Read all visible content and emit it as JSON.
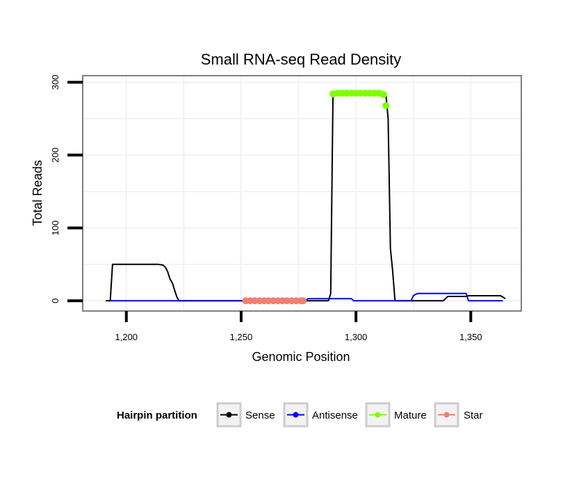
{
  "chart_data": {
    "type": "line",
    "title": "Small RNA-seq Read Density",
    "xlabel": "Genomic Position",
    "ylabel": "Total Reads",
    "xlim": [
      1181,
      1372
    ],
    "ylim": [
      -14,
      309
    ],
    "x_ticks": [
      1200,
      1250,
      1300,
      1350
    ],
    "x_tick_labels": [
      "1,200",
      "1,250",
      "1,300",
      "1,350"
    ],
    "y_ticks": [
      0,
      100,
      200,
      300
    ],
    "y_tick_labels": [
      "0",
      "100",
      "200",
      "300"
    ],
    "grid": true,
    "legend": {
      "title": "Hairpin partition",
      "position": "bottom"
    },
    "series": [
      {
        "name": "Sense",
        "color": "#000000",
        "style": "line",
        "points": [
          [
            1191,
            0
          ],
          [
            1193,
            0
          ],
          [
            1194,
            50
          ],
          [
            1214,
            50
          ],
          [
            1216,
            49
          ],
          [
            1217,
            46
          ],
          [
            1218,
            40
          ],
          [
            1219,
            30
          ],
          [
            1220,
            25
          ],
          [
            1221,
            15
          ],
          [
            1222,
            5
          ],
          [
            1223,
            0
          ],
          [
            1288,
            0
          ],
          [
            1289,
            10
          ],
          [
            1290,
            285
          ],
          [
            1313,
            285
          ],
          [
            1314,
            250
          ],
          [
            1315,
            72
          ],
          [
            1316,
            40
          ],
          [
            1317,
            0
          ],
          [
            1338,
            0
          ],
          [
            1340,
            6
          ],
          [
            1348,
            6
          ],
          [
            1349,
            7
          ],
          [
            1363,
            7
          ],
          [
            1365,
            3
          ]
        ]
      },
      {
        "name": "Antisense",
        "color": "#0000ff",
        "style": "line",
        "points": [
          [
            1193,
            0
          ],
          [
            1278,
            0
          ],
          [
            1279,
            3
          ],
          [
            1298,
            3
          ],
          [
            1299,
            0
          ],
          [
            1324,
            0
          ],
          [
            1325,
            7
          ],
          [
            1326,
            9
          ],
          [
            1327,
            10
          ],
          [
            1348,
            10
          ],
          [
            1349,
            0
          ],
          [
            1364,
            0
          ]
        ]
      },
      {
        "name": "Mature",
        "color": "#7fff00",
        "style": "points",
        "points": [
          [
            1290,
            284
          ],
          [
            1292,
            285
          ],
          [
            1294,
            285
          ],
          [
            1296,
            285
          ],
          [
            1298,
            285
          ],
          [
            1300,
            285
          ],
          [
            1302,
            285
          ],
          [
            1304,
            285
          ],
          [
            1306,
            285
          ],
          [
            1308,
            285
          ],
          [
            1310,
            285
          ],
          [
            1312,
            283
          ],
          [
            1313,
            268
          ]
        ]
      },
      {
        "name": "Star",
        "color": "#f08070",
        "style": "points",
        "points": [
          [
            1252,
            0
          ],
          [
            1254,
            0
          ],
          [
            1256,
            0
          ],
          [
            1258,
            0
          ],
          [
            1260,
            0
          ],
          [
            1262,
            0
          ],
          [
            1264,
            0
          ],
          [
            1266,
            0
          ],
          [
            1268,
            0
          ],
          [
            1270,
            0
          ],
          [
            1272,
            0
          ],
          [
            1274,
            0
          ],
          [
            1276,
            0
          ],
          [
            1277,
            0
          ]
        ]
      }
    ]
  }
}
